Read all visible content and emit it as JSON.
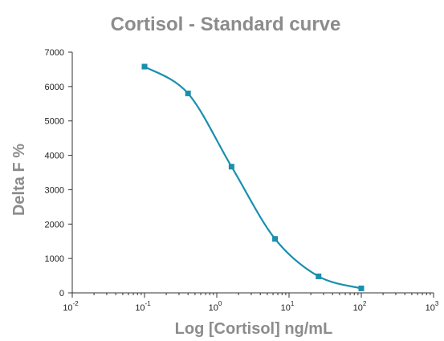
{
  "chart_data": {
    "type": "scatter",
    "title": "Cortisol - Standard curve",
    "xlabel": "Log [Cortisol] ng/mL",
    "ylabel": "Delta F %",
    "x_scale": "log",
    "xlim": [
      0.01,
      1000
    ],
    "ylim": [
      0,
      7000
    ],
    "x_ticks": [
      {
        "base": "10",
        "exp": "-2",
        "value": 0.01
      },
      {
        "base": "10",
        "exp": "-1",
        "value": 0.1
      },
      {
        "base": "10",
        "exp": "0",
        "value": 1
      },
      {
        "base": "10",
        "exp": "1",
        "value": 10
      },
      {
        "base": "10",
        "exp": "2",
        "value": 100
      },
      {
        "base": "10",
        "exp": "3",
        "value": 1000
      }
    ],
    "y_ticks": [
      {
        "label": "0",
        "value": 0
      },
      {
        "label": "1000",
        "value": 1000
      },
      {
        "label": "2000",
        "value": 2000
      },
      {
        "label": "3000",
        "value": 3000
      },
      {
        "label": "4000",
        "value": 4000
      },
      {
        "label": "5000",
        "value": 5000
      },
      {
        "label": "6000",
        "value": 6000
      },
      {
        "label": "7000",
        "value": 7000
      }
    ],
    "grid": false,
    "series": [
      {
        "points": [
          {
            "x": 0.1,
            "y": 6580
          },
          {
            "x": 0.4,
            "y": 5800
          },
          {
            "x": 1.6,
            "y": 3670
          },
          {
            "x": 6.4,
            "y": 1570
          },
          {
            "x": 25.6,
            "y": 480
          },
          {
            "x": 100,
            "y": 130
          }
        ],
        "fit": "4PL",
        "color": "#1a8fae"
      }
    ]
  }
}
